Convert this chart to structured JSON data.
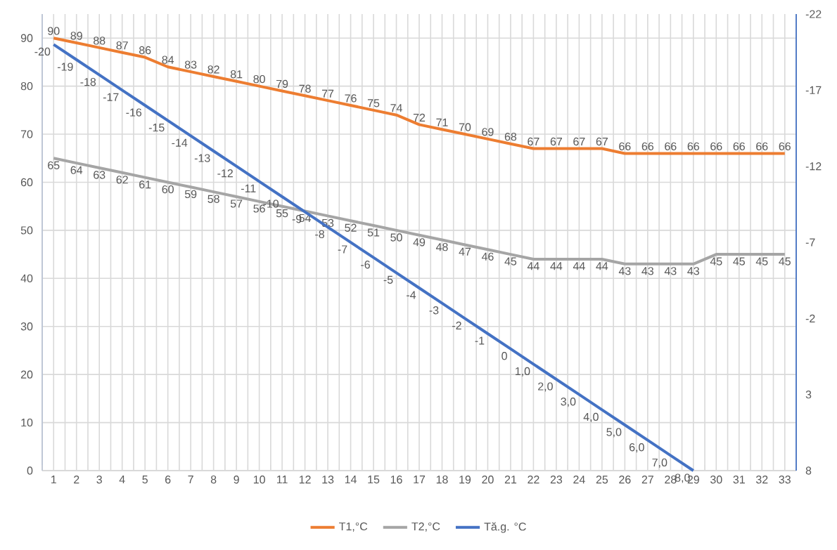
{
  "chart_data": {
    "type": "line",
    "categories": [
      "1",
      "2",
      "3",
      "4",
      "5",
      "6",
      "7",
      "8",
      "9",
      "10",
      "11",
      "12",
      "13",
      "14",
      "15",
      "16",
      "17",
      "18",
      "19",
      "20",
      "21",
      "22",
      "23",
      "24",
      "25",
      "26",
      "27",
      "28",
      "29",
      "30",
      "31",
      "32",
      "33"
    ],
    "ylim": [
      0,
      95
    ],
    "yticks": [
      0,
      10,
      20,
      30,
      40,
      50,
      60,
      70,
      80,
      90
    ],
    "y2lim": [
      8,
      -22
    ],
    "y2ticks": [
      -22,
      -17,
      -12,
      -7,
      -2,
      3,
      8
    ],
    "grid": true,
    "legend": "bottom",
    "marker": "none",
    "series": [
      {
        "name": "T1,°C",
        "color": "#ed7d31",
        "values": [
          90,
          89,
          88,
          87,
          86,
          84,
          83,
          82,
          81,
          80,
          79,
          78,
          77,
          76,
          75,
          74,
          72,
          71,
          70,
          69,
          68,
          67,
          67,
          67,
          67,
          66,
          66,
          66,
          66,
          66,
          66,
          66,
          66
        ],
        "value_labels": [
          "90",
          "89",
          "88",
          "87",
          "86",
          "84",
          "83",
          "82",
          "81",
          "80",
          "79",
          "78",
          "77",
          "76",
          "75",
          "74",
          "72",
          "71",
          "70",
          "69",
          "68",
          "67",
          "67",
          "67",
          "67",
          "66",
          "66",
          "66",
          "66",
          "66",
          "66",
          "66",
          "66"
        ]
      },
      {
        "name": "T2,°C",
        "color": "#a5a5a5",
        "values": [
          65,
          64,
          63,
          62,
          61,
          60,
          59,
          58,
          57,
          56,
          55,
          54,
          53,
          52,
          51,
          50,
          49,
          48,
          47,
          46,
          45,
          44,
          44,
          44,
          44,
          43,
          43,
          43,
          43,
          45,
          45,
          45,
          45
        ],
        "value_labels": [
          "65",
          "64",
          "63",
          "62",
          "61",
          "60",
          "59",
          "58",
          "57",
          "56",
          "55",
          "54",
          "53",
          "52",
          "51",
          "50",
          "49",
          "48",
          "47",
          "46",
          "45",
          "44",
          "44",
          "44",
          "44",
          "43",
          "43",
          "43",
          "43",
          "45",
          "45",
          "45",
          "45"
        ]
      },
      {
        "name": "Tă.g. °C",
        "color": "#4472c4",
        "axis": "y2",
        "values": [
          -20,
          -19,
          -18,
          -17,
          -16,
          -15,
          -14,
          -13,
          -12,
          -11,
          -10,
          -9,
          -8,
          -7,
          -6,
          -5,
          -4,
          -3,
          -2,
          -1,
          0,
          1,
          2,
          3,
          4,
          5,
          6,
          7,
          8,
          null,
          null,
          null,
          null
        ],
        "value_labels": [
          "-20",
          "-19",
          "-18",
          "-17",
          "-16",
          "-15",
          "-14",
          "-13",
          "-12",
          "-11",
          "-10",
          "-9",
          "-8",
          "-7",
          "-6",
          "-5",
          "-4",
          "-3",
          "-2",
          "-1",
          "0",
          "1,0",
          "2,0",
          "3,0",
          "4,0",
          "5,0",
          "6,0",
          "7,0",
          "8,0",
          null,
          null,
          null,
          null
        ]
      }
    ]
  }
}
